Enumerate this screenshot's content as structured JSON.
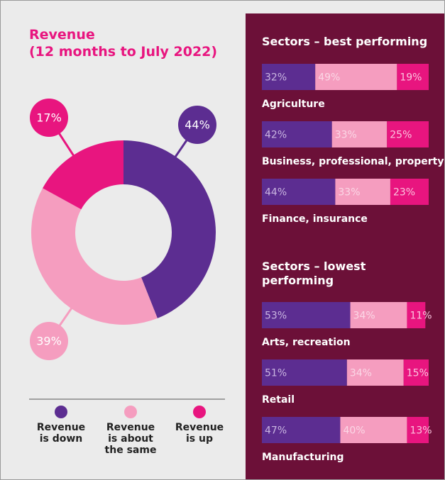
{
  "chart_data": [
    {
      "type": "pie",
      "title": "Revenue\n(12 months to July 2022)",
      "categories": [
        "Revenue\nis down",
        "Revenue\nis about\nthe same",
        "Revenue\nis up"
      ],
      "values": [
        44,
        39,
        17
      ],
      "value_labels": [
        "44%",
        "39%",
        "17%"
      ],
      "colors": [
        "#5c2d91",
        "#f59dbf",
        "#e8157f"
      ],
      "donut": true
    },
    {
      "type": "bar",
      "orientation": "horizontal",
      "stacked": true,
      "title": "Sectors – best performing",
      "categories": [
        "Agriculture",
        "Business, professional, property",
        "Finance, insurance"
      ],
      "xlim": [
        0,
        100
      ],
      "series": [
        {
          "color": "#5c2d91",
          "values": [
            32,
            42,
            44
          ],
          "value_labels": [
            "32%",
            "42%",
            "44%"
          ]
        },
        {
          "color": "#f59dbf",
          "values": [
            49,
            33,
            33
          ],
          "value_labels": [
            "49%",
            "33%",
            "33%"
          ]
        },
        {
          "color": "#e8157f",
          "values": [
            19,
            25,
            23
          ],
          "value_labels": [
            "19%",
            "25%",
            "23%"
          ]
        }
      ]
    },
    {
      "type": "bar",
      "orientation": "horizontal",
      "stacked": true,
      "title": "Sectors – lowest\nperforming",
      "categories": [
        "Arts, recreation",
        "Retail",
        "Manufacturing"
      ],
      "xlim": [
        0,
        100
      ],
      "series": [
        {
          "color": "#5c2d91",
          "values": [
            53,
            51,
            47
          ],
          "value_labels": [
            "53%",
            "51%",
            "47%"
          ]
        },
        {
          "color": "#f59dbf",
          "values": [
            34,
            34,
            40
          ],
          "value_labels": [
            "34%",
            "34%",
            "40%"
          ]
        },
        {
          "color": "#e8157f",
          "values": [
            11,
            15,
            13
          ],
          "value_labels": [
            "11%",
            "15%",
            "13%"
          ]
        }
      ]
    }
  ]
}
